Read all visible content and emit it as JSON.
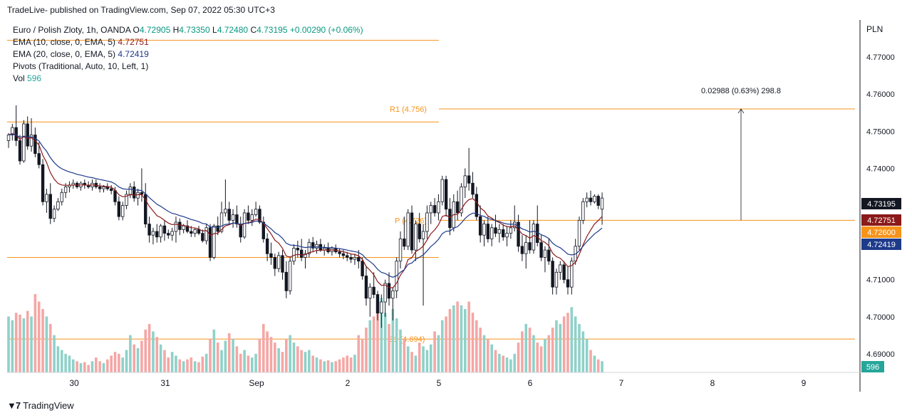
{
  "header": {
    "published": "TradeLive- published on TradingView.com, Sep 07, 2022 05:30 UTC+3"
  },
  "footer": {
    "brand": "TradingView"
  },
  "legend": {
    "symbol": "Euro / Polish Zloty, 1h, OANDA",
    "ohlc": {
      "o_label": "O",
      "o": "4.72905",
      "h_label": "H",
      "h": "4.73350",
      "l_label": "L",
      "l": "4.72480",
      "c_label": "C",
      "c": "4.73195",
      "change": "+0.00290 (+0.06%)"
    },
    "ema10": {
      "label": "EMA (10, close, 0, EMA, 5)",
      "value": "4.72751"
    },
    "ema20": {
      "label": "EMA (20, close, 0, EMA, 5)",
      "value": "4.72419"
    },
    "pivots": {
      "label": "Pivots (Traditional, Auto, 10, Left, 1)"
    },
    "vol": {
      "label": "Vol",
      "value": "596"
    }
  },
  "colors": {
    "up": "#26a69a",
    "down": "#ef5350",
    "pivot": "#f7931a",
    "ema10": "#8b1a1a",
    "ema20": "#1e3a8a",
    "axis_bg": "#131722",
    "vol_tag": "#26a69a"
  },
  "chart_data": {
    "type": "candlestick",
    "currency": "PLN",
    "ylim": [
      4.685,
      4.78
    ],
    "y_ticks": [
      "4.77000",
      "4.76000",
      "4.75000",
      "4.74000",
      "4.73000",
      "4.72000",
      "4.71000",
      "4.70000",
      "4.69000"
    ],
    "x_ticks": [
      "30",
      "31",
      "Sep",
      "2",
      "5",
      "6",
      "7",
      "8",
      "9"
    ],
    "price_tags": [
      {
        "name": "last",
        "value": "4.73195",
        "bg": "#131722"
      },
      {
        "name": "ema10",
        "value": "4.72751",
        "bg": "#8b1a1a"
      },
      {
        "name": "pivot",
        "value": "4.72600",
        "bg": "#f7931a"
      },
      {
        "name": "ema20",
        "value": "4.72419",
        "bg": "#1e3a8a"
      }
    ],
    "vol_tag": "596",
    "pivots": [
      {
        "label": "R1 (4.756)",
        "value": 4.756
      },
      {
        "label": "P (4.726)",
        "value": 4.726
      },
      {
        "label": "S1 (4.694)",
        "value": 4.694
      }
    ],
    "prev_pivots": [
      4.7745,
      4.7525,
      4.716
    ],
    "measure": {
      "text": "0.02988 (0.63%) 298.8",
      "from": 4.726,
      "to": 4.756
    },
    "candles": [
      [
        4.7475,
        4.7495,
        4.7455,
        4.749,
        300
      ],
      [
        4.749,
        4.752,
        4.7475,
        4.751,
        280
      ],
      [
        4.751,
        4.757,
        4.746,
        4.7475,
        320
      ],
      [
        4.7475,
        4.749,
        4.741,
        4.742,
        310
      ],
      [
        4.742,
        4.753,
        4.7415,
        4.752,
        290
      ],
      [
        4.752,
        4.754,
        4.745,
        4.746,
        330
      ],
      [
        4.746,
        4.7535,
        4.7445,
        4.749,
        300
      ],
      [
        4.749,
        4.751,
        4.743,
        4.744,
        420
      ],
      [
        4.744,
        4.747,
        4.74,
        4.741,
        380
      ],
      [
        4.741,
        4.7425,
        4.73,
        4.731,
        340
      ],
      [
        4.731,
        4.7345,
        4.728,
        4.733,
        300
      ],
      [
        4.733,
        4.736,
        4.725,
        4.7265,
        260
      ],
      [
        4.7265,
        4.73,
        4.7255,
        4.729,
        200
      ],
      [
        4.729,
        4.732,
        4.7285,
        4.731,
        140
      ],
      [
        4.731,
        4.7345,
        4.73,
        4.7335,
        120
      ],
      [
        4.7335,
        4.736,
        4.732,
        4.735,
        100
      ],
      [
        4.735,
        4.7365,
        4.7335,
        4.7355,
        90
      ],
      [
        4.7355,
        4.737,
        4.7345,
        4.736,
        70
      ],
      [
        4.736,
        4.7365,
        4.7345,
        4.735,
        60
      ],
      [
        4.735,
        4.7365,
        4.734,
        4.736,
        50
      ],
      [
        4.736,
        4.737,
        4.7345,
        4.7355,
        55
      ],
      [
        4.7355,
        4.7365,
        4.7345,
        4.735,
        40
      ],
      [
        4.735,
        4.737,
        4.734,
        4.736,
        60
      ],
      [
        4.736,
        4.737,
        4.7345,
        4.735,
        80
      ],
      [
        4.735,
        4.736,
        4.7335,
        4.7345,
        60
      ],
      [
        4.7345,
        4.7355,
        4.7335,
        4.735,
        50
      ],
      [
        4.735,
        4.736,
        4.734,
        4.7345,
        70
      ],
      [
        4.7345,
        4.7355,
        4.733,
        4.734,
        90
      ],
      [
        4.734,
        4.735,
        4.73,
        4.731,
        110
      ],
      [
        4.731,
        4.7325,
        4.726,
        4.727,
        100
      ],
      [
        4.727,
        4.731,
        4.726,
        4.73,
        80
      ],
      [
        4.73,
        4.734,
        4.729,
        4.733,
        120
      ],
      [
        4.733,
        4.736,
        4.732,
        4.735,
        200
      ],
      [
        4.735,
        4.7365,
        4.731,
        4.732,
        150
      ],
      [
        4.732,
        4.7345,
        4.73,
        4.7335,
        130
      ],
      [
        4.7335,
        4.74,
        4.731,
        4.733,
        170
      ],
      [
        4.733,
        4.736,
        4.724,
        4.725,
        230
      ],
      [
        4.725,
        4.727,
        4.72,
        4.722,
        260
      ],
      [
        4.722,
        4.724,
        4.7195,
        4.723,
        220
      ],
      [
        4.723,
        4.725,
        4.72,
        4.7215,
        190
      ],
      [
        4.7215,
        4.725,
        4.72,
        4.7245,
        150
      ],
      [
        4.7245,
        4.726,
        4.7205,
        4.7225,
        120
      ],
      [
        4.7225,
        4.7235,
        4.721,
        4.722,
        80
      ],
      [
        4.722,
        4.724,
        4.7205,
        4.723,
        110
      ],
      [
        4.723,
        4.727,
        4.72,
        4.7255,
        90
      ],
      [
        4.7255,
        4.7265,
        4.722,
        4.7235,
        70
      ],
      [
        4.7235,
        4.725,
        4.7225,
        4.7245,
        60
      ],
      [
        4.7245,
        4.726,
        4.7225,
        4.723,
        70
      ],
      [
        4.723,
        4.7245,
        4.7215,
        4.7225,
        80
      ],
      [
        4.7225,
        4.724,
        4.7215,
        4.7235,
        60
      ],
      [
        4.7235,
        4.7245,
        4.722,
        4.7225,
        55
      ],
      [
        4.7225,
        4.7235,
        4.72,
        4.7205,
        85
      ],
      [
        4.7205,
        4.725,
        4.7195,
        4.724,
        100
      ],
      [
        4.724,
        4.725,
        4.715,
        4.716,
        180
      ],
      [
        4.716,
        4.725,
        4.7155,
        4.7245,
        230
      ],
      [
        4.7245,
        4.727,
        4.722,
        4.723,
        160
      ],
      [
        4.723,
        4.731,
        4.7225,
        4.728,
        120
      ],
      [
        4.728,
        4.737,
        4.727,
        4.729,
        170
      ],
      [
        4.729,
        4.731,
        4.725,
        4.726,
        210
      ],
      [
        4.726,
        4.729,
        4.724,
        4.7275,
        180
      ],
      [
        4.7275,
        4.73,
        4.724,
        4.725,
        140
      ],
      [
        4.725,
        4.727,
        4.72,
        4.7215,
        100
      ],
      [
        4.7215,
        4.729,
        4.721,
        4.728,
        120
      ],
      [
        4.728,
        4.73,
        4.725,
        4.726,
        90
      ],
      [
        4.726,
        4.729,
        4.7245,
        4.7275,
        80
      ],
      [
        4.7275,
        4.731,
        4.727,
        4.729,
        100
      ],
      [
        4.729,
        4.73,
        4.725,
        4.7255,
        180
      ],
      [
        4.7255,
        4.727,
        4.72,
        4.721,
        260
      ],
      [
        4.721,
        4.7225,
        4.715,
        4.717,
        220
      ],
      [
        4.717,
        4.72,
        4.714,
        4.716,
        190
      ],
      [
        4.716,
        4.717,
        4.711,
        4.713,
        160
      ],
      [
        4.713,
        4.7175,
        4.712,
        4.7165,
        130
      ],
      [
        4.7165,
        4.718,
        4.71,
        4.712,
        110
      ],
      [
        4.712,
        4.715,
        4.705,
        4.707,
        180
      ],
      [
        4.707,
        4.716,
        4.706,
        4.715,
        200
      ],
      [
        4.715,
        4.7195,
        4.714,
        4.7185,
        160
      ],
      [
        4.7185,
        4.7205,
        4.716,
        4.718,
        140
      ],
      [
        4.718,
        4.721,
        4.715,
        4.716,
        120
      ],
      [
        4.716,
        4.718,
        4.713,
        4.717,
        110
      ],
      [
        4.717,
        4.721,
        4.716,
        4.72,
        120
      ],
      [
        4.72,
        4.7215,
        4.7175,
        4.7185,
        90
      ],
      [
        4.7185,
        4.7205,
        4.717,
        4.7195,
        80
      ],
      [
        4.7195,
        4.721,
        4.7175,
        4.718,
        70
      ],
      [
        4.718,
        4.7195,
        4.7165,
        4.7185,
        60
      ],
      [
        4.7185,
        4.72,
        4.717,
        4.7175,
        65
      ],
      [
        4.7175,
        4.719,
        4.7165,
        4.7185,
        55
      ],
      [
        4.7185,
        4.7195,
        4.717,
        4.7175,
        60
      ],
      [
        4.7175,
        4.7185,
        4.716,
        4.717,
        70
      ],
      [
        4.717,
        4.718,
        4.7155,
        4.7165,
        80
      ],
      [
        4.7165,
        4.7175,
        4.715,
        4.716,
        90
      ],
      [
        4.716,
        4.717,
        4.7145,
        4.7155,
        80
      ],
      [
        4.7155,
        4.717,
        4.714,
        4.716,
        95
      ],
      [
        4.716,
        4.718,
        4.713,
        4.715,
        200
      ],
      [
        4.715,
        4.716,
        4.71,
        4.711,
        180
      ],
      [
        4.711,
        4.7135,
        4.703,
        4.705,
        240
      ],
      [
        4.705,
        4.709,
        4.7,
        4.708,
        280
      ],
      [
        4.708,
        4.712,
        4.705,
        4.706,
        300
      ],
      [
        4.706,
        4.707,
        4.699,
        4.701,
        360
      ],
      [
        4.701,
        4.706,
        4.697,
        4.704,
        400
      ],
      [
        4.704,
        4.71,
        4.7,
        4.709,
        320
      ],
      [
        4.709,
        4.712,
        4.703,
        4.705,
        260
      ],
      [
        4.705,
        4.708,
        4.699,
        4.707,
        340
      ],
      [
        4.707,
        4.716,
        4.705,
        4.715,
        290
      ],
      [
        4.715,
        4.723,
        4.713,
        4.721,
        230
      ],
      [
        4.721,
        4.727,
        4.718,
        4.719,
        180
      ],
      [
        4.719,
        4.729,
        4.718,
        4.728,
        140
      ],
      [
        4.728,
        4.73,
        4.717,
        4.718,
        110
      ],
      [
        4.718,
        4.726,
        4.715,
        4.725,
        90
      ],
      [
        4.725,
        4.728,
        4.72,
        4.721,
        160
      ],
      [
        4.721,
        4.725,
        4.703,
        4.723,
        140
      ],
      [
        4.723,
        4.73,
        4.721,
        4.728,
        120
      ],
      [
        4.728,
        4.731,
        4.725,
        4.73,
        150
      ],
      [
        4.73,
        4.732,
        4.727,
        4.728,
        220
      ],
      [
        4.728,
        4.733,
        4.726,
        4.731,
        200
      ],
      [
        4.731,
        4.738,
        4.73,
        4.737,
        280
      ],
      [
        4.737,
        4.738,
        4.727,
        4.729,
        300
      ],
      [
        4.729,
        4.732,
        4.722,
        4.724,
        340
      ],
      [
        4.724,
        4.733,
        4.723,
        4.731,
        360
      ],
      [
        4.731,
        4.734,
        4.726,
        4.728,
        380
      ],
      [
        4.728,
        4.736,
        4.727,
        4.735,
        360
      ],
      [
        4.735,
        4.74,
        4.732,
        4.738,
        340
      ],
      [
        4.738,
        4.7455,
        4.734,
        4.736,
        380
      ],
      [
        4.736,
        4.739,
        4.732,
        4.733,
        320
      ],
      [
        4.733,
        4.735,
        4.726,
        4.727,
        280
      ],
      [
        4.727,
        4.73,
        4.72,
        4.722,
        240
      ],
      [
        4.722,
        4.726,
        4.719,
        4.725,
        200
      ],
      [
        4.725,
        4.727,
        4.72,
        4.721,
        180
      ],
      [
        4.721,
        4.725,
        4.719,
        4.724,
        150
      ],
      [
        4.724,
        4.7275,
        4.7215,
        4.7225,
        120
      ],
      [
        4.7225,
        4.725,
        4.72,
        4.7235,
        100
      ],
      [
        4.7235,
        4.725,
        4.7205,
        4.7215,
        90
      ],
      [
        4.7215,
        4.7245,
        4.719,
        4.7225,
        80
      ],
      [
        4.7225,
        4.726,
        4.721,
        4.724,
        70
      ],
      [
        4.724,
        4.73,
        4.723,
        4.7255,
        100
      ],
      [
        4.7255,
        4.7275,
        4.7175,
        4.719,
        160
      ],
      [
        4.719,
        4.722,
        4.715,
        4.717,
        220
      ],
      [
        4.717,
        4.722,
        4.713,
        4.72,
        260
      ],
      [
        4.72,
        4.726,
        4.717,
        4.718,
        240
      ],
      [
        4.718,
        4.726,
        4.717,
        4.725,
        200
      ],
      [
        4.725,
        4.73,
        4.719,
        4.72,
        160
      ],
      [
        4.72,
        4.722,
        4.715,
        4.716,
        140
      ],
      [
        4.716,
        4.719,
        4.712,
        4.718,
        180
      ],
      [
        4.718,
        4.721,
        4.714,
        4.715,
        200
      ],
      [
        4.715,
        4.716,
        4.706,
        4.708,
        240
      ],
      [
        4.708,
        4.713,
        4.706,
        4.712,
        280
      ],
      [
        4.712,
        4.715,
        4.71,
        4.714,
        260
      ],
      [
        4.714,
        4.715,
        4.709,
        4.71,
        300
      ],
      [
        4.71,
        4.7135,
        4.706,
        4.708,
        320
      ],
      [
        4.708,
        4.716,
        4.706,
        4.715,
        350
      ],
      [
        4.715,
        4.721,
        4.714,
        4.719,
        300
      ],
      [
        4.719,
        4.727,
        4.718,
        4.726,
        260
      ],
      [
        4.726,
        4.732,
        4.725,
        4.731,
        220
      ],
      [
        4.731,
        4.7335,
        4.7295,
        4.732,
        180
      ],
      [
        4.732,
        4.734,
        4.73,
        4.731,
        120
      ],
      [
        4.731,
        4.733,
        4.7305,
        4.7325,
        90
      ],
      [
        4.7325,
        4.733,
        4.729,
        4.73,
        70
      ],
      [
        4.729,
        4.7335,
        4.7248,
        4.732,
        60
      ]
    ]
  }
}
